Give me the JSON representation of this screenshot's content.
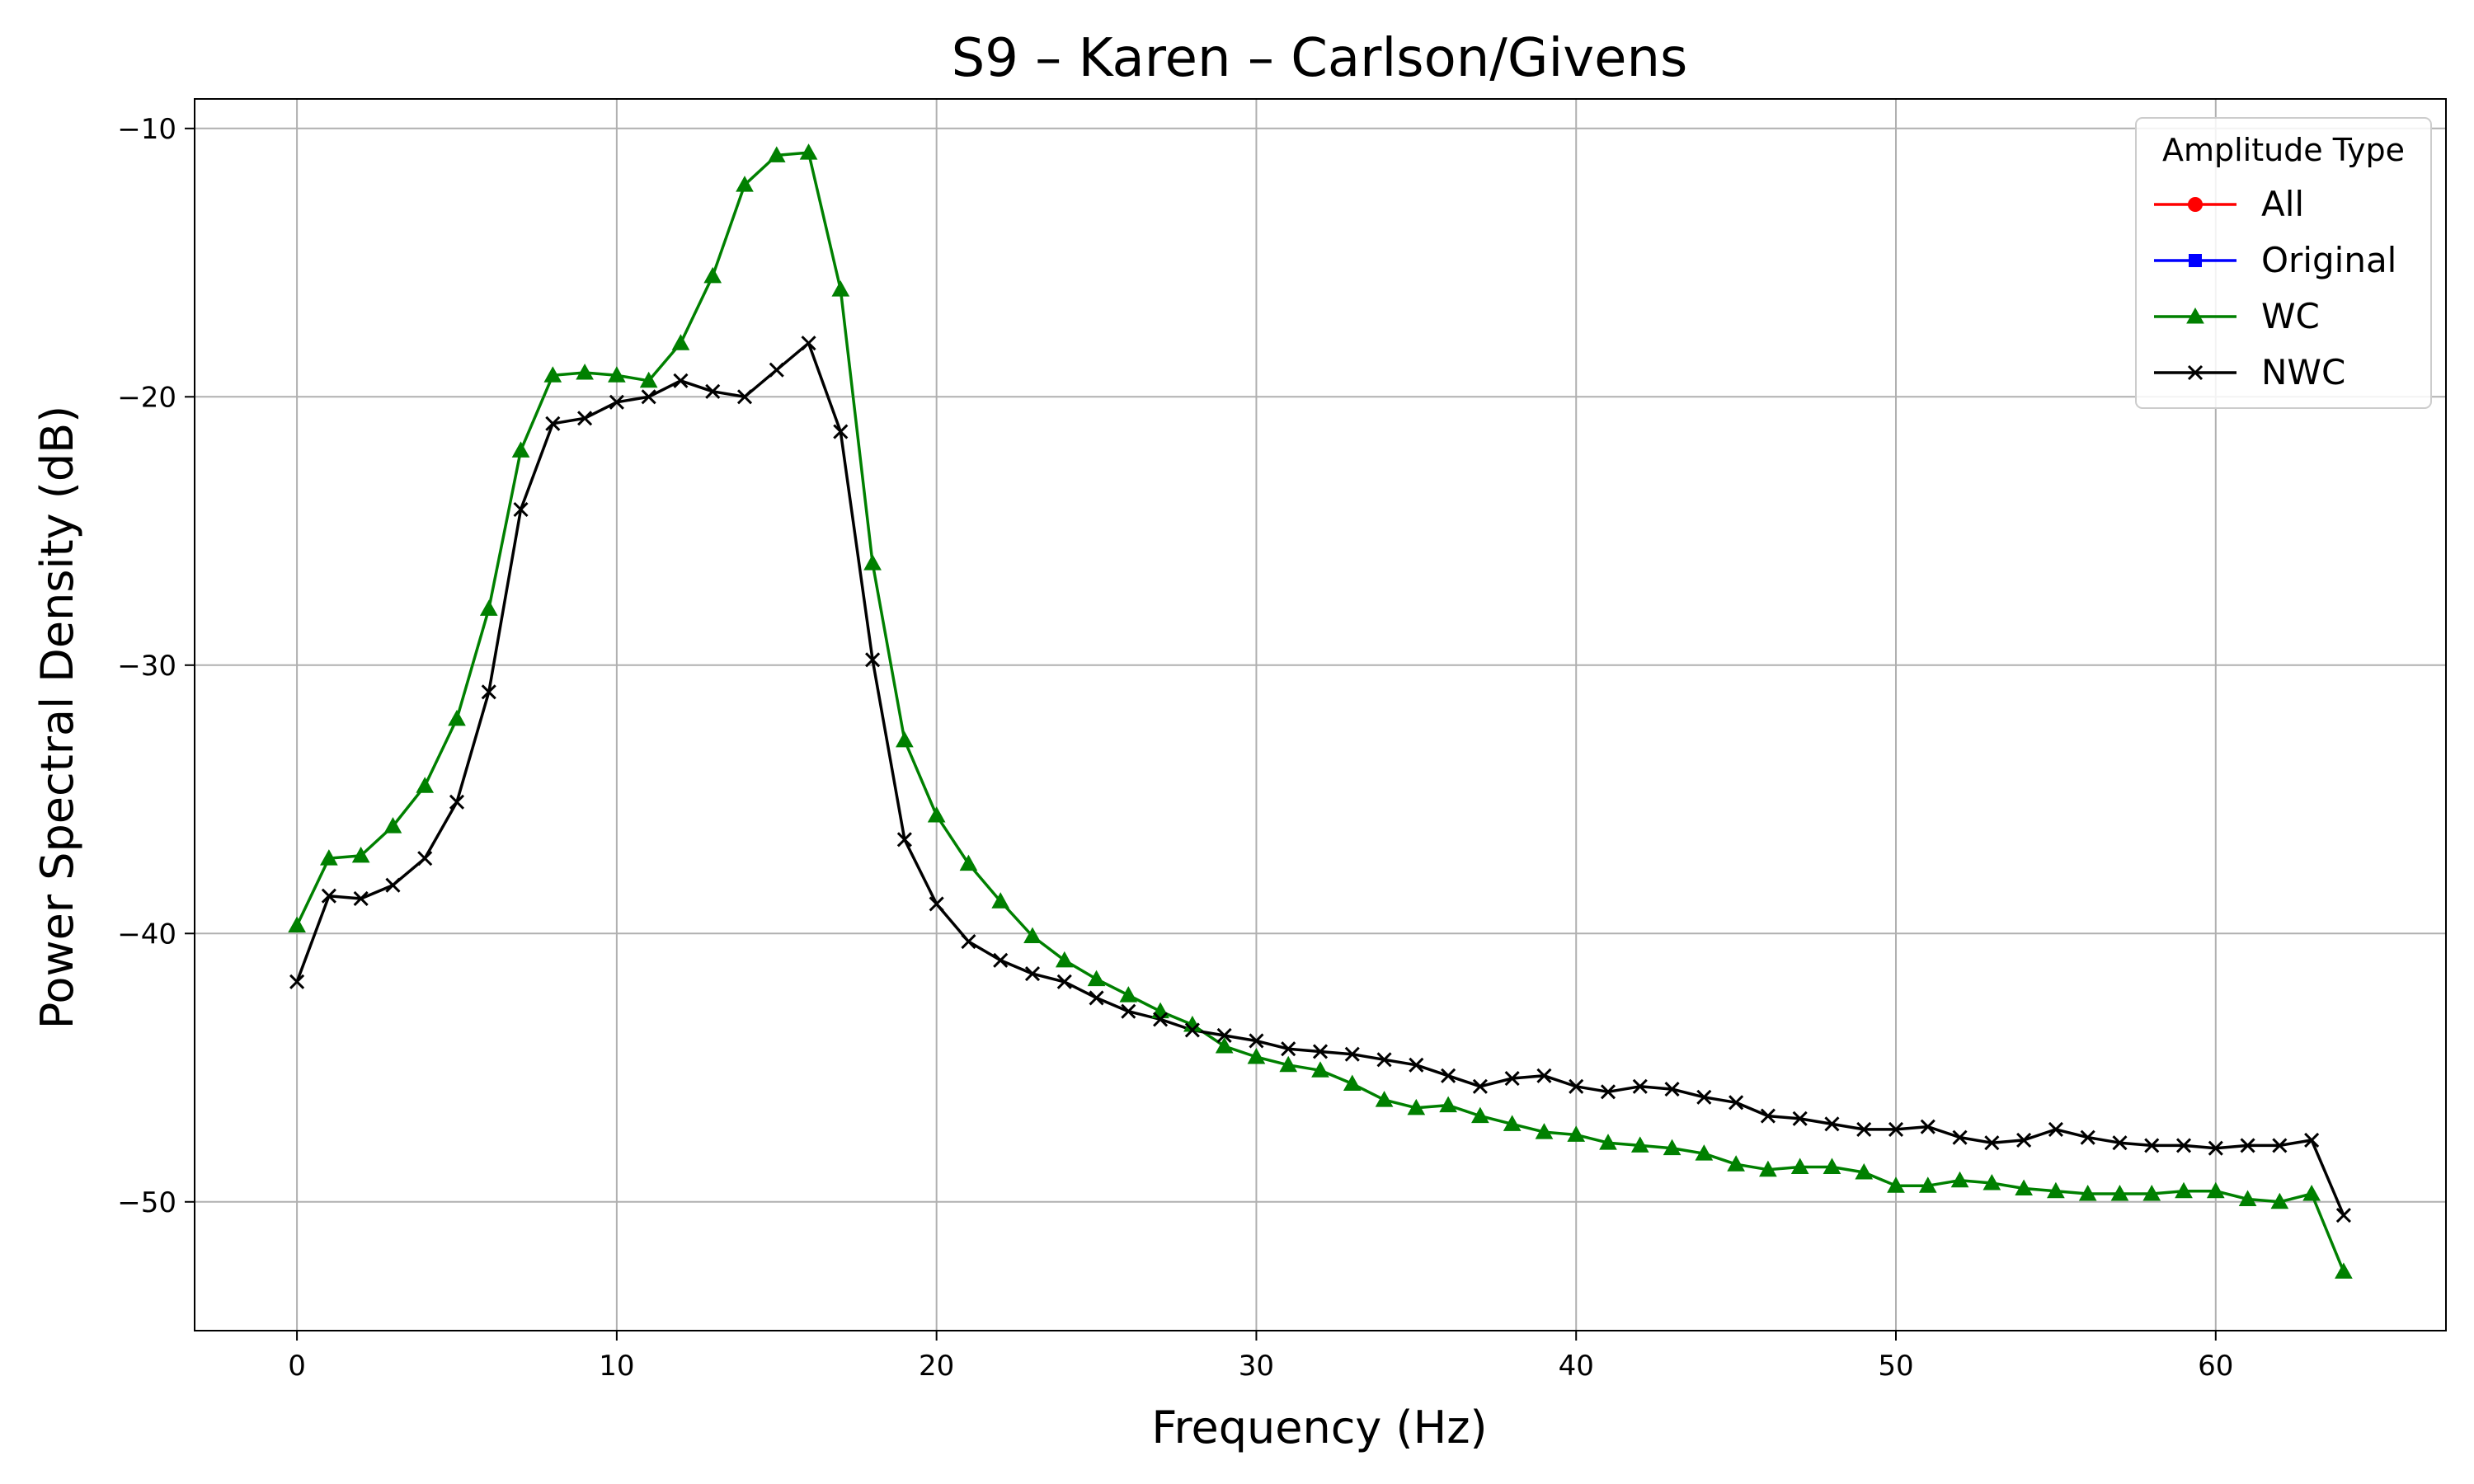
{
  "chart_data": {
    "type": "line",
    "title": "S9 – Karen – Carlson/Givens",
    "xlabel": "Frequency (Hz)",
    "ylabel": "Power Spectral Density (dB)",
    "xlim": [
      -3.2,
      67.2
    ],
    "ylim": [
      -54.8,
      -8.9
    ],
    "xticks": [
      0,
      10,
      20,
      30,
      40,
      50,
      60
    ],
    "yticks": [
      -50,
      -40,
      -30,
      -20,
      -10
    ],
    "xtick_labels": [
      "0",
      "10",
      "20",
      "30",
      "40",
      "50",
      "60"
    ],
    "ytick_labels": [
      "−50",
      "−40",
      "−30",
      "−20",
      "−10"
    ],
    "grid": true,
    "legend": {
      "title": "Amplitude Type",
      "placement": "top-right",
      "entries": [
        {
          "name": "All",
          "color": "#ff0000",
          "marker": "circle"
        },
        {
          "name": "Original",
          "color": "#0000ff",
          "marker": "square"
        },
        {
          "name": "WC",
          "color": "#008000",
          "marker": "triangle"
        },
        {
          "name": "NWC",
          "color": "#000000",
          "marker": "x"
        }
      ]
    },
    "x": [
      0,
      1,
      2,
      3,
      4,
      5,
      6,
      7,
      8,
      9,
      10,
      11,
      12,
      13,
      14,
      15,
      16,
      17,
      18,
      19,
      20,
      21,
      22,
      23,
      24,
      25,
      26,
      27,
      28,
      29,
      30,
      31,
      32,
      33,
      34,
      35,
      36,
      37,
      38,
      39,
      40,
      41,
      42,
      43,
      44,
      45,
      46,
      47,
      48,
      49,
      50,
      51,
      52,
      53,
      54,
      55,
      56,
      57,
      58,
      59,
      60,
      61,
      62,
      63,
      64
    ],
    "series": [
      {
        "name": "WC",
        "color": "#008000",
        "marker": "triangle",
        "values": [
          -39.7,
          -37.2,
          -37.1,
          -36.0,
          -34.5,
          -32.0,
          -27.9,
          -22.0,
          -19.2,
          -19.1,
          -19.2,
          -19.4,
          -18.0,
          -15.5,
          -12.1,
          -11.0,
          -10.9,
          -16.0,
          -26.2,
          -32.8,
          -35.6,
          -37.4,
          -38.8,
          -40.1,
          -41.0,
          -41.7,
          -42.3,
          -42.9,
          -43.4,
          -44.2,
          -44.6,
          -44.9,
          -45.1,
          -45.6,
          -46.2,
          -46.5,
          -46.4,
          -46.8,
          -47.1,
          -47.4,
          -47.5,
          -47.8,
          -47.9,
          -48.0,
          -48.2,
          -48.6,
          -48.8,
          -48.7,
          -48.7,
          -48.9,
          -49.4,
          -49.4,
          -49.2,
          -49.3,
          -49.5,
          -49.6,
          -49.7,
          -49.7,
          -49.7,
          -49.6,
          -49.6,
          -49.9,
          -50.0,
          -49.7,
          -52.6
        ]
      },
      {
        "name": "NWC",
        "color": "#000000",
        "marker": "x",
        "values": [
          -41.8,
          -38.6,
          -38.7,
          -38.2,
          -37.2,
          -35.1,
          -31.0,
          -24.2,
          -21.0,
          -20.8,
          -20.2,
          -20.0,
          -19.4,
          -19.8,
          -20.0,
          -19.0,
          -18.0,
          -21.3,
          -29.8,
          -36.5,
          -38.9,
          -40.3,
          -41.0,
          -41.5,
          -41.8,
          -42.4,
          -42.9,
          -43.2,
          -43.6,
          -43.8,
          -44.0,
          -44.3,
          -44.4,
          -44.5,
          -44.7,
          -44.9,
          -45.3,
          -45.7,
          -45.4,
          -45.3,
          -45.7,
          -45.9,
          -45.7,
          -45.8,
          -46.1,
          -46.3,
          -46.8,
          -46.9,
          -47.1,
          -47.3,
          -47.3,
          -47.2,
          -47.6,
          -47.8,
          -47.7,
          -47.3,
          -47.6,
          -47.8,
          -47.9,
          -47.9,
          -48.0,
          -47.9,
          -47.9,
          -47.7,
          -50.5
        ]
      }
    ]
  }
}
